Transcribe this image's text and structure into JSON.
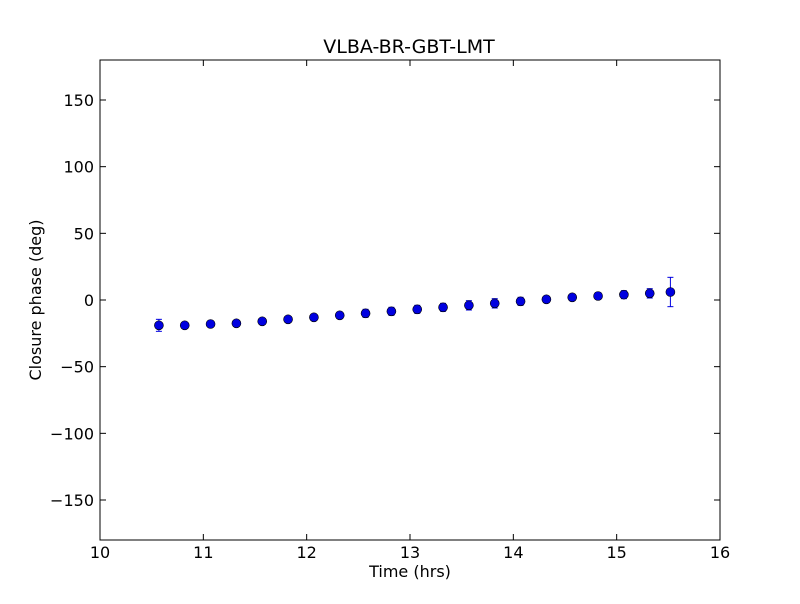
{
  "chart_data": {
    "type": "scatter",
    "title": "VLBA-BR-GBT-LMT",
    "xlabel": "Time (hrs)",
    "ylabel": "Closure phase (deg)",
    "xlim": [
      10,
      16
    ],
    "ylim": [
      -180,
      180
    ],
    "xticks": [
      10,
      11,
      12,
      13,
      14,
      15,
      16
    ],
    "yticks": [
      -150,
      -100,
      -50,
      0,
      50,
      100,
      150
    ],
    "xtick_labels": [
      "10",
      "11",
      "12",
      "13",
      "14",
      "15",
      "16"
    ],
    "ytick_labels": [
      "−150",
      "−100",
      "−50",
      "0",
      "50",
      "100",
      "150"
    ],
    "grid": false,
    "marker_color": "#0000e0",
    "errorbar_color": "#0000e0",
    "series": [
      {
        "x": [
          10.57,
          10.82,
          11.07,
          11.32,
          11.57,
          11.82,
          12.07,
          12.32,
          12.57,
          12.82,
          13.07,
          13.32,
          13.57,
          13.82,
          14.07,
          14.32,
          14.57,
          14.82,
          15.07,
          15.32,
          15.52
        ],
        "y": [
          -19,
          -19,
          -18,
          -17.5,
          -16,
          -14.5,
          -13,
          -11.5,
          -10,
          -8.5,
          -7,
          -5.5,
          -4,
          -2.5,
          -1,
          0.5,
          2,
          3,
          4,
          5,
          6
        ],
        "yerr": [
          4.5,
          2,
          2,
          2,
          2,
          2,
          2.5,
          2.5,
          3,
          3,
          3,
          3,
          3.5,
          3.5,
          3,
          2.5,
          2.5,
          2.5,
          3,
          3.5,
          11
        ]
      }
    ]
  }
}
